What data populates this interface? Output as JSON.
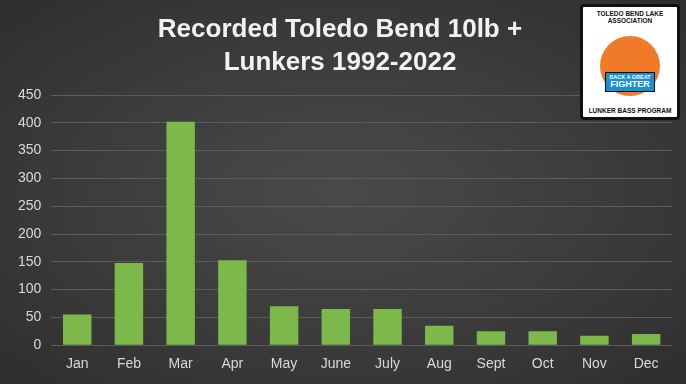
{
  "chart_data": {
    "type": "bar",
    "title": [
      "Recorded Toledo Bend 10lb +",
      "Lunkers 1992-2022"
    ],
    "annotations": [
      "TOLEDO BEND LAKE ASSOCIATION",
      "BACK A GREAT",
      "FIGHTER",
      "LUNKER BASS PROGRAM"
    ],
    "categories": [
      "Jan",
      "Feb",
      "Mar",
      "Apr",
      "May",
      "June",
      "July",
      "Aug",
      "Sept",
      "Oct",
      "Nov",
      "Dec"
    ],
    "values": [
      55,
      148,
      402,
      153,
      70,
      65,
      65,
      35,
      25,
      25,
      17,
      20
    ],
    "color": "#7cb84a",
    "ylim": [
      0,
      450
    ],
    "yticks": [
      0,
      50,
      100,
      150,
      200,
      250,
      300,
      350,
      400,
      450
    ],
    "grid": true
  }
}
